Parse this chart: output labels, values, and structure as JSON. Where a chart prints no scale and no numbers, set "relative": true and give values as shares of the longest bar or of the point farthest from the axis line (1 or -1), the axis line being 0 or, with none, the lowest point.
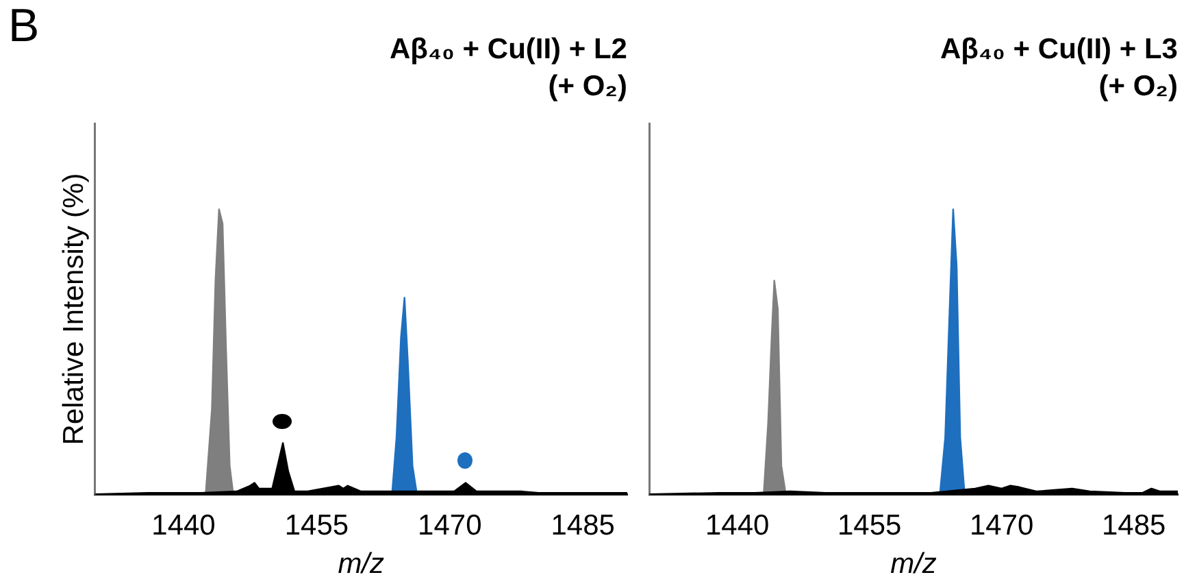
{
  "chart_data": [
    {
      "type": "area",
      "title": "Aβ₄₀ + Cu(II) + L2",
      "subtitle": "(+ O₂)",
      "ylabel": "Relative Intensity (%)",
      "xlabel": "m/z",
      "annotations": [
        "B"
      ],
      "relative": true,
      "xlim": [
        1430,
        1490
      ],
      "xticks": [
        1440,
        1455,
        1470,
        1485
      ],
      "tick_labels": "x",
      "grid": false,
      "legend": false,
      "marker": "none",
      "series": [
        {
          "color": "#000000",
          "x": [
            1430,
            1436,
            1442,
            1446,
            1447.5,
            1448,
            1448.5,
            1450,
            1450.6,
            1451.2,
            1451.8,
            1452.5,
            1454,
            1457.5,
            1458,
            1458.5,
            1460,
            1461,
            1462,
            1467,
            1470.5,
            1471.8,
            1473,
            1476,
            1478,
            1480,
            1490
          ],
          "values": [
            0,
            0.005,
            0.005,
            0.01,
            0.03,
            0.04,
            0.02,
            0.02,
            0.1,
            0.18,
            0.08,
            0.01,
            0.01,
            0.03,
            0.02,
            0.03,
            0.01,
            0.01,
            0.01,
            0.01,
            0.01,
            0.04,
            0.01,
            0.01,
            0.01,
            0.005,
            0.005
          ]
        },
        {
          "color": "#7f7f7f",
          "x": [
            1442.5,
            1443.2,
            1443.6,
            1444.0,
            1444.4,
            1444.8,
            1445.2,
            1445.6
          ],
          "values": [
            0,
            0.3,
            0.75,
            1,
            0.95,
            0.5,
            0.1,
            0
          ]
        },
        {
          "color": "#1f6fbf",
          "x": [
            1463.5,
            1464,
            1464.5,
            1464.9,
            1465.3,
            1465.8,
            1466.3
          ],
          "values": [
            0,
            0.2,
            0.55,
            0.69,
            0.45,
            0.1,
            0
          ]
        }
      ]
    },
    {
      "type": "area",
      "title": "Aβ₄₀ + Cu(II) + L3",
      "subtitle": "(+ O₂)",
      "xlabel": "m/z",
      "relative": true,
      "xlim": [
        1430,
        1490
      ],
      "xticks": [
        1440,
        1455,
        1470,
        1485
      ],
      "tick_labels": "x",
      "grid": false,
      "legend": false,
      "marker": "none",
      "series": [
        {
          "color": "#000000",
          "x": [
            1430,
            1438,
            1442,
            1446,
            1450,
            1456,
            1462,
            1467,
            1468.5,
            1470,
            1471,
            1472,
            1474,
            1476,
            1478,
            1480,
            1484,
            1486,
            1487,
            1488,
            1490
          ],
          "values": [
            0,
            0.005,
            0.005,
            0.01,
            0.005,
            0.005,
            0.005,
            0.02,
            0.03,
            0.02,
            0.03,
            0.025,
            0.01,
            0.015,
            0.02,
            0.01,
            0.005,
            0.005,
            0.02,
            0.01,
            0.01
          ]
        },
        {
          "color": "#7f7f7f",
          "x": [
            1443,
            1443.5,
            1443.9,
            1444.2,
            1444.6,
            1445,
            1445.5
          ],
          "values": [
            0,
            0.25,
            0.55,
            0.75,
            0.65,
            0.1,
            0
          ]
        },
        {
          "color": "#1f6fbf",
          "x": [
            1463,
            1463.6,
            1464.1,
            1464.5,
            1464.9,
            1465.3,
            1465.8
          ],
          "values": [
            0,
            0.2,
            0.65,
            1,
            0.8,
            0.2,
            0
          ]
        }
      ]
    }
  ]
}
